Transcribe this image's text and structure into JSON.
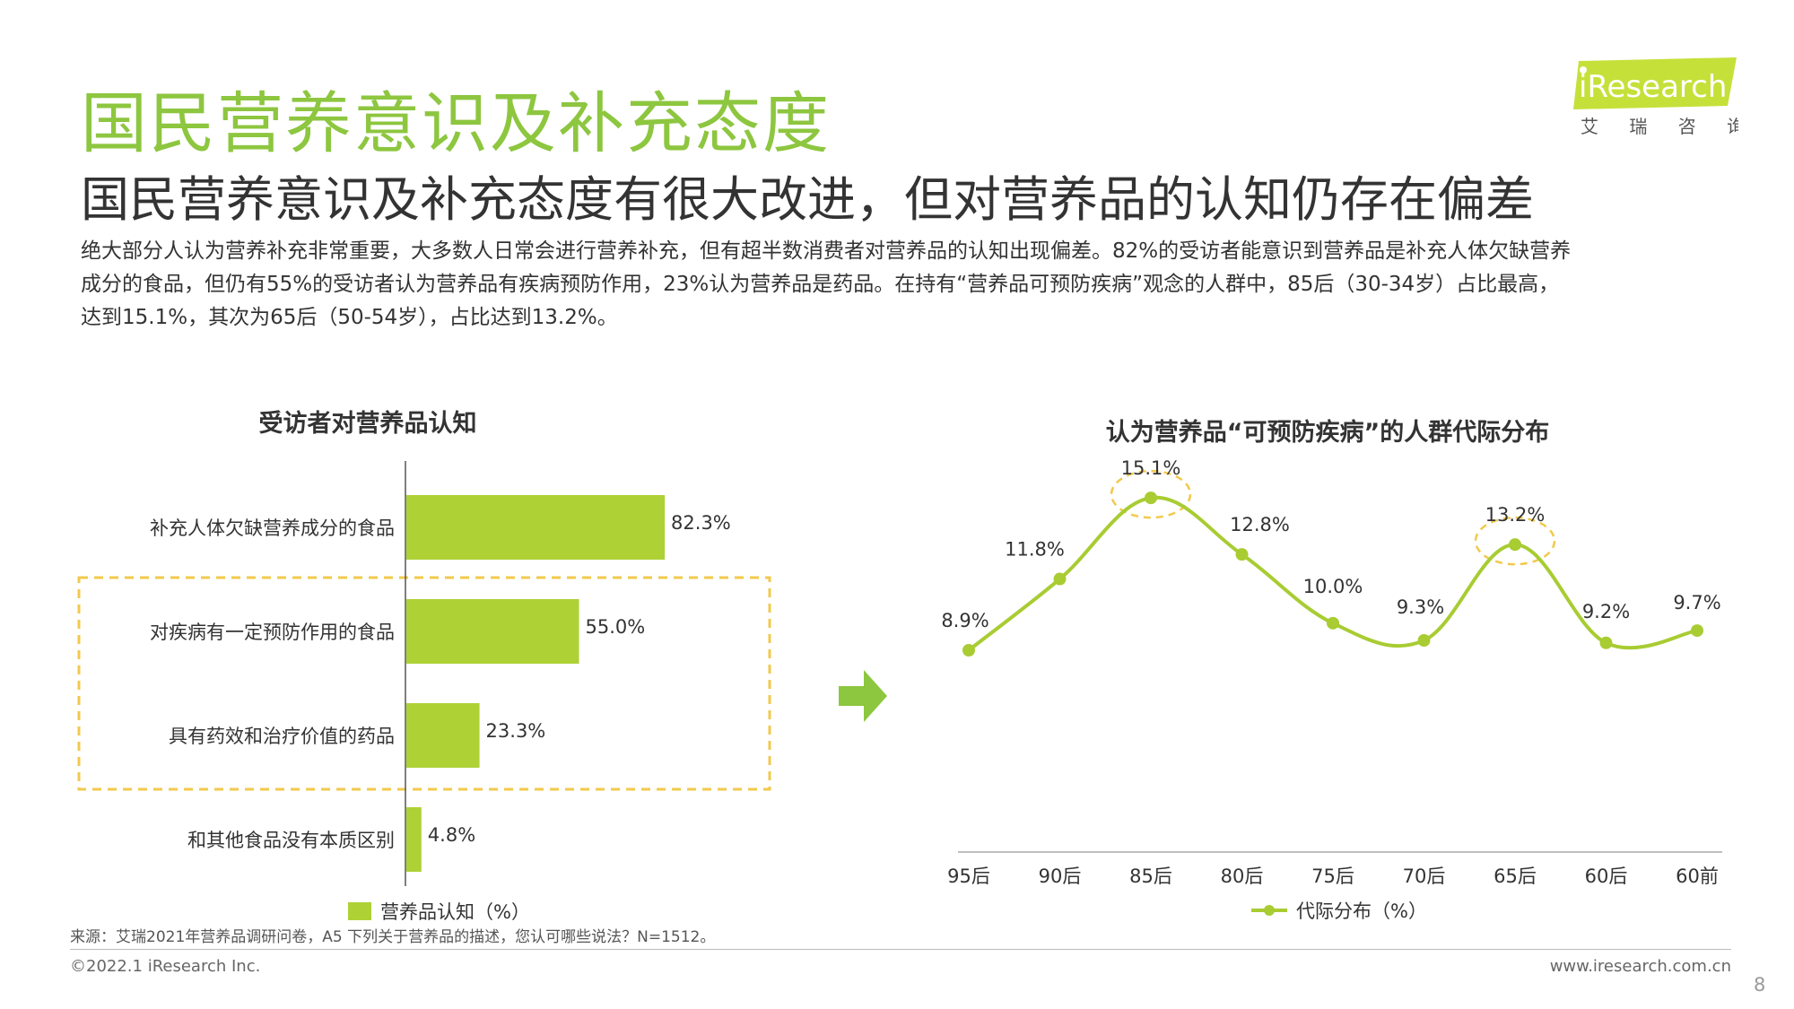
{
  "header": {
    "title": "国民营养意识及补充态度",
    "subtitle": "国民营养意识及补充态度有很大改进，但对营养品的认知仍存在偏差",
    "summary_lines": [
      "绝大部分人认为营养补充非常重要，大多数人日常会进行营养补充，但有超半数消费者对营养品的认知出现偏差。82%的受访者能意识到营养品是补充人体欠缺营养",
      "成分的食品，但仍有55%的受访者认为营养品有疾病预防作用，23%认为营养品是药品。在持有“营养品可预防疾病”观念的人群中，85后（30-34岁）占比最高，",
      "达到15.1%，其次为65后（50-54岁），占比达到13.2%。"
    ]
  },
  "logo": {
    "brand": "iResearch",
    "cn": "艾 瑞 咨 询",
    "brand_color": "#c6e03a"
  },
  "colors": {
    "accent": "#8dc63f",
    "bar": "#aed136",
    "line": "#a8cc32",
    "highlight": "#f2c94c"
  },
  "chart_data": [
    {
      "type": "bar",
      "orientation": "horizontal",
      "title": "受访者对营养品认知",
      "categories": [
        "补充人体欠缺营养成分的食品",
        "对疾病有一定预防作用的食品",
        "具有药效和治疗价值的药品",
        "和其他食品没有本质区别"
      ],
      "values": [
        82.3,
        55.0,
        23.3,
        4.8
      ],
      "value_labels": [
        "82.3%",
        "55.0%",
        "23.3%",
        "4.8%"
      ],
      "series": [
        {
          "name": "营养品认知（%）",
          "values": [
            82.3,
            55.0,
            23.3,
            4.8
          ]
        }
      ],
      "highlighted_categories": [
        1,
        2
      ],
      "xlim": [
        0,
        100
      ],
      "legend": "bottom"
    },
    {
      "type": "line",
      "title": "认为营养品“可预防疾病”的人群代际分布",
      "categories": [
        "95后",
        "90后",
        "85后",
        "80后",
        "75后",
        "70后",
        "65后",
        "60后",
        "60前"
      ],
      "values": [
        8.9,
        11.8,
        15.1,
        12.8,
        10.0,
        9.3,
        13.2,
        9.2,
        9.7
      ],
      "value_labels": [
        "8.9%",
        "11.8%",
        "15.1%",
        "12.8%",
        "10.0%",
        "9.3%",
        "13.2%",
        "9.2%",
        "9.7%"
      ],
      "series": [
        {
          "name": "代际分布（%）",
          "values": [
            8.9,
            11.8,
            15.1,
            12.8,
            10.0,
            9.3,
            13.2,
            9.2,
            9.7
          ]
        }
      ],
      "highlighted_points": [
        2,
        6
      ],
      "smooth": true,
      "legend": "bottom"
    }
  ],
  "footer": {
    "source": "来源：艾瑞2021年营养品调研问卷，A5 下列关于营养品的描述，您认可哪些说法？N=1512。",
    "copyright": "©2022.1 iResearch Inc.",
    "url": "www.iresearch.com.cn",
    "page": "8"
  }
}
